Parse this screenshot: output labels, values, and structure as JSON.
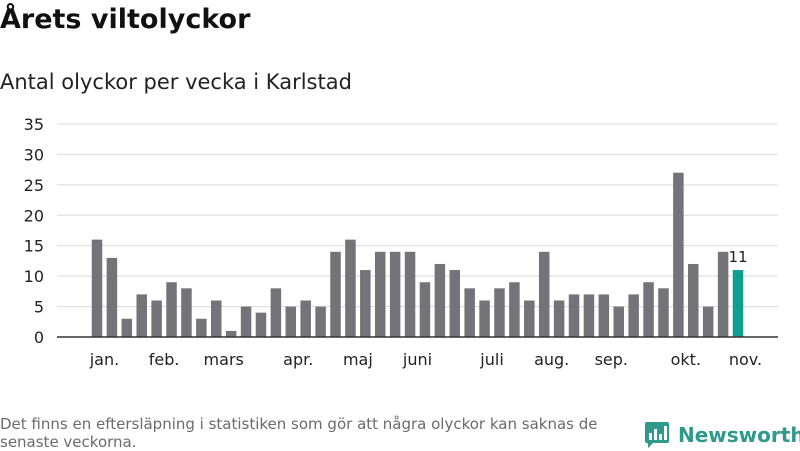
{
  "header": {
    "title": "Årets viltolyckor",
    "subtitle": "Antal olyckor per vecka i Karlstad"
  },
  "footer": {
    "note": "Det finns en eftersläpning i statistiken som gör att några olyckor kan saknas de senaste veckorna.",
    "brand": "Newsworthy"
  },
  "colors": {
    "bar": "#747379",
    "highlight": "#0e9e92",
    "grid": "#d9d9d9",
    "axis": "#333333",
    "brand": "#2f9a8c"
  },
  "chart_data": {
    "type": "bar",
    "title": "Antal olyckor per vecka i Karlstad",
    "xlabel": "",
    "ylabel": "",
    "ylim": [
      0,
      35
    ],
    "yticks": [
      0,
      5,
      10,
      15,
      20,
      25,
      30,
      35
    ],
    "grid": true,
    "weeks": [
      1,
      2,
      3,
      4,
      5,
      6,
      7,
      8,
      9,
      10,
      11,
      12,
      13,
      14,
      15,
      16,
      17,
      18,
      19,
      20,
      21,
      22,
      23,
      24,
      25,
      26,
      27,
      28,
      29,
      30,
      31,
      32,
      33,
      34,
      35,
      36,
      37,
      38,
      39,
      40,
      41,
      42,
      43,
      44
    ],
    "values": [
      16,
      13,
      3,
      7,
      6,
      9,
      8,
      3,
      6,
      1,
      5,
      4,
      8,
      5,
      6,
      5,
      14,
      16,
      11,
      14,
      14,
      14,
      9,
      12,
      11,
      8,
      6,
      8,
      9,
      6,
      14,
      6,
      7,
      7,
      7,
      5,
      7,
      9,
      8,
      27,
      12,
      5,
      14,
      11
    ],
    "month_labels": [
      {
        "label": "jan.",
        "at_week": 1.5
      },
      {
        "label": "feb.",
        "at_week": 5.5
      },
      {
        "label": "mars",
        "at_week": 9.5
      },
      {
        "label": "apr.",
        "at_week": 14.5
      },
      {
        "label": "maj",
        "at_week": 18.5
      },
      {
        "label": "juni",
        "at_week": 22.5
      },
      {
        "label": "juli",
        "at_week": 27.5
      },
      {
        "label": "aug.",
        "at_week": 31.5
      },
      {
        "label": "sep.",
        "at_week": 35.5
      },
      {
        "label": "okt.",
        "at_week": 40.5
      },
      {
        "label": "nov.",
        "at_week": 44.5
      }
    ],
    "highlight_week": 44,
    "highlight_label": "11"
  }
}
